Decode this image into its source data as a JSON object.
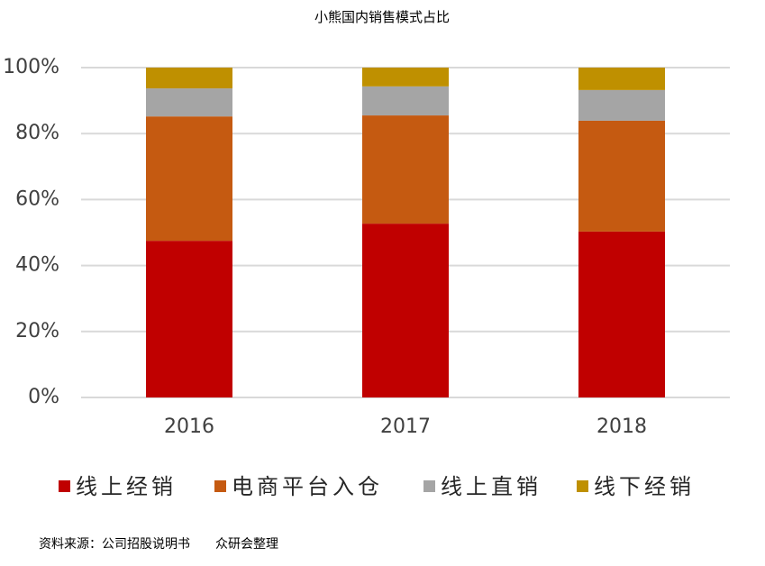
{
  "chart_data": {
    "type": "stacked_bar",
    "title": "小熊国内销售模式占比",
    "categories": [
      "2016",
      "2017",
      "2018"
    ],
    "series": [
      {
        "name": "线上经销",
        "color": "#c00000",
        "values": [
          47.5,
          52.7,
          50.3
        ]
      },
      {
        "name": "电商平台入仓",
        "color": "#c55a11",
        "values": [
          37.7,
          32.8,
          33.6
        ]
      },
      {
        "name": "线上直销",
        "color": "#a5a5a5",
        "values": [
          8.5,
          8.8,
          9.3
        ]
      },
      {
        "name": "线下经销",
        "color": "#bf9000",
        "values": [
          6.3,
          5.7,
          6.8
        ]
      }
    ],
    "ylim": [
      0,
      100
    ],
    "yticks": [
      {
        "value": 0,
        "label": "0%"
      },
      {
        "value": 20,
        "label": "20%"
      },
      {
        "value": 40,
        "label": "40%"
      },
      {
        "value": 60,
        "label": "60%"
      },
      {
        "value": 80,
        "label": "80%"
      },
      {
        "value": 100,
        "label": "100%"
      }
    ],
    "grid": true,
    "legend": "bottom",
    "source": "资料来源：公司招股说明书　　众研会整理"
  }
}
